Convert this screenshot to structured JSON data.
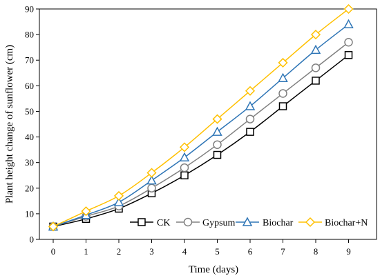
{
  "chart_data": {
    "type": "line",
    "xlabel": "Time (days)",
    "ylabel": "Plant height change of sunflower (cm)",
    "x": [
      0,
      1,
      2,
      3,
      4,
      5,
      6,
      7,
      8,
      9
    ],
    "xlim": [
      0,
      9
    ],
    "ylim": [
      0,
      90
    ],
    "x_ticks": [
      "0",
      "1",
      "2",
      "3",
      "4",
      "5",
      "6",
      "7",
      "8",
      "9"
    ],
    "y_ticks": [
      "0",
      "10",
      "20",
      "30",
      "40",
      "50",
      "60",
      "70",
      "80",
      "90"
    ],
    "grid": false,
    "legend_position": "bottom-right",
    "series": [
      {
        "name": "CK",
        "marker": "square",
        "color": "#000000",
        "values": [
          5,
          8,
          12,
          18,
          25,
          33,
          42,
          52,
          62,
          72
        ]
      },
      {
        "name": "Gypsum",
        "marker": "circle",
        "color": "#808080",
        "values": [
          5,
          9,
          13,
          20,
          28,
          37,
          47,
          57,
          67,
          77
        ]
      },
      {
        "name": "Biochar",
        "marker": "triangle",
        "color": "#2E75B6",
        "values": [
          5,
          9.5,
          14.5,
          23,
          32,
          42,
          52,
          63,
          74,
          84
        ]
      },
      {
        "name": "Biochar+N",
        "marker": "diamond",
        "color": "#FFC000",
        "values": [
          5,
          11,
          17,
          26,
          36,
          47,
          58,
          69,
          80,
          90
        ]
      }
    ]
  }
}
